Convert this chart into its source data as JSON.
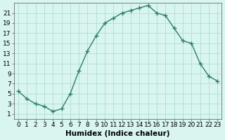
{
  "x": [
    0,
    1,
    2,
    3,
    4,
    5,
    6,
    7,
    8,
    9,
    10,
    11,
    12,
    13,
    14,
    15,
    16,
    17,
    18,
    19,
    20,
    21,
    22,
    23
  ],
  "y": [
    5.5,
    4.0,
    3.0,
    2.5,
    1.5,
    2.0,
    5.0,
    9.5,
    13.5,
    16.5,
    19.0,
    20.0,
    21.0,
    21.5,
    22.0,
    22.5,
    21.0,
    20.5,
    18.0,
    15.5,
    15.0,
    11.0,
    8.5,
    7.5
  ],
  "line_color": "#2e7d6e",
  "marker": "+",
  "marker_size": 4,
  "marker_linewidth": 1.0,
  "linewidth": 1.0,
  "bg_color": "#d8f5f0",
  "grid_color": "#aad8d0",
  "xlabel": "Humidex (Indice chaleur)",
  "xlim": [
    -0.5,
    23.5
  ],
  "ylim": [
    0,
    23
  ],
  "xticks": [
    0,
    1,
    2,
    3,
    4,
    5,
    6,
    7,
    8,
    9,
    10,
    11,
    12,
    13,
    14,
    15,
    16,
    17,
    18,
    19,
    20,
    21,
    22,
    23
  ],
  "yticks": [
    1,
    3,
    5,
    7,
    9,
    11,
    13,
    15,
    17,
    19,
    21
  ],
  "tick_fontsize": 6.5,
  "xlabel_fontsize": 7.5
}
